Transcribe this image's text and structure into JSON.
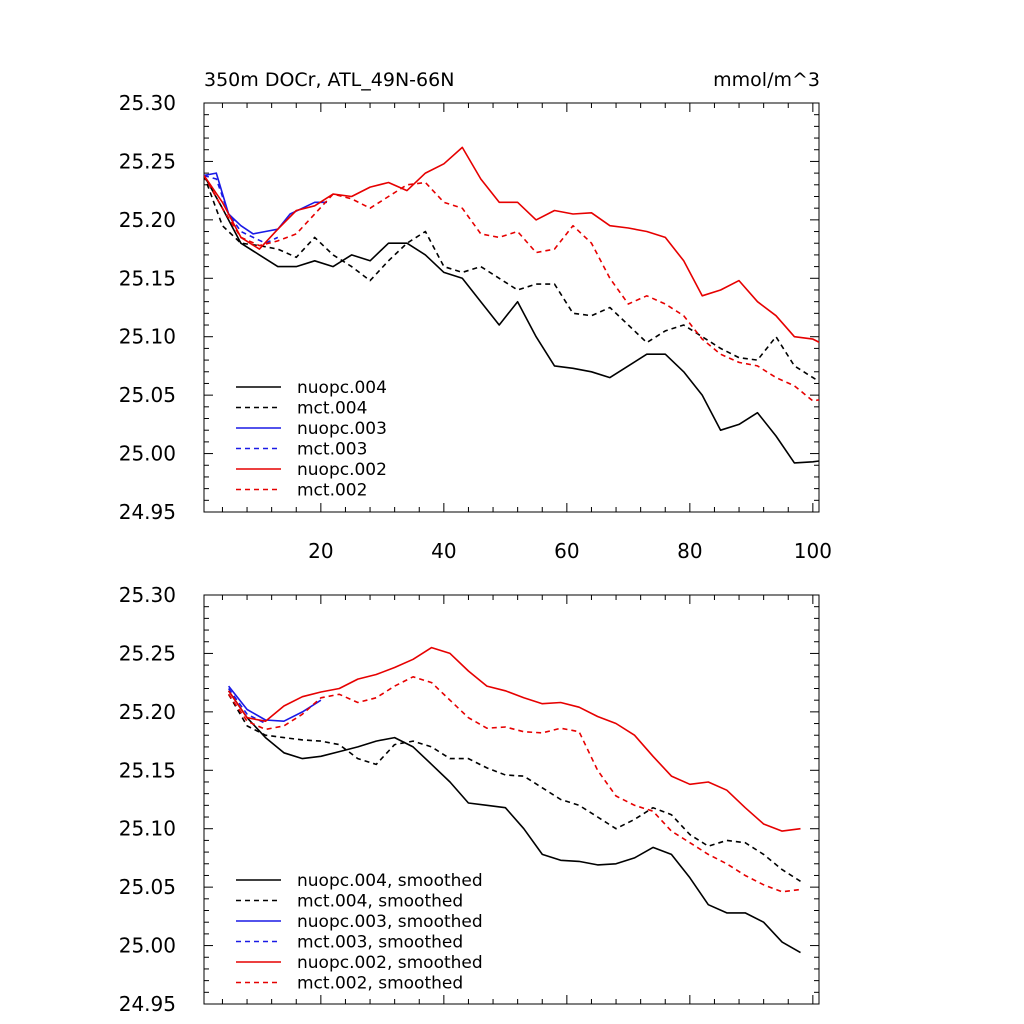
{
  "title_left": "350m DOCr, ATL_49N-66N",
  "title_right": "mmol/m^3",
  "chart_data": [
    {
      "type": "line",
      "title": "350m DOCr, ATL_49N-66N",
      "units": "mmol/m^3",
      "xlim": [
        1,
        101
      ],
      "ylim": [
        24.95,
        25.3
      ],
      "x_ticks": [
        20,
        40,
        60,
        80,
        100
      ],
      "x_tick_labels": [
        "20",
        "40",
        "60",
        "80",
        "100"
      ],
      "y_ticks": [
        24.95,
        25.0,
        25.05,
        25.1,
        25.15,
        25.2,
        25.25,
        25.3
      ],
      "y_tick_labels": [
        "24.95",
        "25.00",
        "25.05",
        "25.10",
        "25.15",
        "25.20",
        "25.25",
        "25.30"
      ],
      "legend_placement": "bottom-left",
      "series": [
        {
          "name": "nuopc.004",
          "color": "#000000",
          "dash": false,
          "x_start": 1,
          "x_step": 3,
          "values": [
            25.238,
            25.21,
            25.18,
            25.17,
            25.16,
            25.16,
            25.165,
            25.16,
            25.17,
            25.165,
            25.18,
            25.18,
            25.17,
            25.155,
            25.15,
            25.13,
            25.11,
            25.13,
            25.1,
            25.075,
            25.073,
            25.07,
            25.065,
            25.075,
            25.085,
            25.085,
            25.07,
            25.05,
            25.02,
            25.025,
            25.035,
            25.015,
            24.992,
            24.993,
            24.995
          ]
        },
        {
          "name": "mct.004",
          "color": "#000000",
          "dash": true,
          "x_start": 1,
          "x_step": 3,
          "values": [
            25.238,
            25.195,
            25.18,
            25.178,
            25.175,
            25.168,
            25.185,
            25.17,
            25.16,
            25.148,
            25.165,
            25.18,
            25.19,
            25.16,
            25.155,
            25.16,
            25.15,
            25.14,
            25.145,
            25.145,
            25.12,
            25.118,
            25.125,
            25.11,
            25.095,
            25.105,
            25.11,
            25.1,
            25.09,
            25.082,
            25.08,
            25.1,
            25.075,
            25.065,
            25.055,
            25.04
          ]
        },
        {
          "name": "nuopc.003",
          "color": "#1a1ae6",
          "dash": false,
          "x_start": 1,
          "x_step": 2,
          "values": [
            25.238,
            25.24,
            25.205,
            25.195,
            25.188,
            25.19,
            25.192,
            25.205,
            25.21,
            25.215,
            25.215
          ]
        },
        {
          "name": "mct.003",
          "color": "#1a1ae6",
          "dash": true,
          "x_start": 1,
          "x_step": 2,
          "values": [
            25.238,
            25.235,
            25.205,
            25.19,
            25.185,
            25.18,
            25.185
          ]
        },
        {
          "name": "nuopc.002",
          "color": "#e60000",
          "dash": false,
          "x_start": 1,
          "x_step": 3,
          "values": [
            25.238,
            25.215,
            25.185,
            25.175,
            25.192,
            25.208,
            25.212,
            25.222,
            25.22,
            25.228,
            25.232,
            25.225,
            25.24,
            25.248,
            25.262,
            25.235,
            25.215,
            25.215,
            25.2,
            25.208,
            25.205,
            25.206,
            25.195,
            25.193,
            25.19,
            25.185,
            25.165,
            25.135,
            25.14,
            25.148,
            25.13,
            25.118,
            25.1,
            25.098,
            25.09,
            25.108
          ]
        },
        {
          "name": "mct.002",
          "color": "#e60000",
          "dash": true,
          "x_start": 1,
          "x_step": 3,
          "values": [
            25.238,
            25.21,
            25.185,
            25.178,
            25.182,
            25.188,
            25.205,
            25.222,
            25.218,
            25.21,
            25.22,
            25.23,
            25.232,
            25.215,
            25.21,
            25.188,
            25.185,
            25.19,
            25.172,
            25.175,
            25.195,
            25.18,
            25.15,
            25.128,
            25.135,
            25.128,
            25.118,
            25.098,
            25.085,
            25.078,
            25.075,
            25.065,
            25.058,
            25.045,
            25.048,
            25.058
          ]
        }
      ]
    },
    {
      "type": "line",
      "xlim": [
        1,
        101
      ],
      "ylim": [
        24.95,
        25.3
      ],
      "x_ticks": [
        20,
        40,
        60,
        80,
        100
      ],
      "y_ticks": [
        24.95,
        25.0,
        25.05,
        25.1,
        25.15,
        25.2,
        25.25,
        25.3
      ],
      "y_tick_labels": [
        "24.95",
        "25.00",
        "25.05",
        "25.10",
        "25.15",
        "25.20",
        "25.25",
        "25.30"
      ],
      "legend_placement": "bottom-left",
      "series": [
        {
          "name": "nuopc.004, smoothed",
          "color": "#000000",
          "dash": false,
          "x_start": 5,
          "x_step": 3,
          "values": [
            25.218,
            25.195,
            25.178,
            25.165,
            25.16,
            25.162,
            25.166,
            25.17,
            25.175,
            25.178,
            25.17,
            25.155,
            25.14,
            25.122,
            25.12,
            25.118,
            25.1,
            25.078,
            25.073,
            25.072,
            25.069,
            25.07,
            25.075,
            25.084,
            25.078,
            25.058,
            25.035,
            25.028,
            25.028,
            25.02,
            25.003,
            24.994
          ]
        },
        {
          "name": "mct.004, smoothed",
          "color": "#000000",
          "dash": true,
          "x_start": 5,
          "x_step": 3,
          "values": [
            25.215,
            25.188,
            25.18,
            25.178,
            25.176,
            25.175,
            25.172,
            25.16,
            25.155,
            25.172,
            25.175,
            25.17,
            25.16,
            25.16,
            25.152,
            25.146,
            25.145,
            25.135,
            25.125,
            25.12,
            25.11,
            25.1,
            25.108,
            25.118,
            25.112,
            25.095,
            25.085,
            25.09,
            25.088,
            25.078,
            25.065,
            25.055
          ]
        },
        {
          "name": "nuopc.003, smoothed",
          "color": "#1a1ae6",
          "dash": false,
          "x_start": 5,
          "x_step": 3,
          "values": [
            25.222,
            25.202,
            25.193,
            25.192,
            25.2,
            25.21
          ]
        },
        {
          "name": "mct.003, smoothed",
          "color": "#1a1ae6",
          "dash": true,
          "x_start": 5,
          "x_step": 3,
          "values": [
            25.22,
            25.198,
            25.19
          ]
        },
        {
          "name": "nuopc.002, smoothed",
          "color": "#e60000",
          "dash": false,
          "x_start": 5,
          "x_step": 3,
          "values": [
            25.218,
            25.195,
            25.192,
            25.205,
            25.213,
            25.217,
            25.22,
            25.228,
            25.232,
            25.238,
            25.245,
            25.255,
            25.25,
            25.235,
            25.222,
            25.218,
            25.212,
            25.207,
            25.208,
            25.204,
            25.196,
            25.19,
            25.18,
            25.162,
            25.145,
            25.138,
            25.14,
            25.133,
            25.118,
            25.104,
            25.098,
            25.1
          ]
        },
        {
          "name": "mct.002, smoothed",
          "color": "#e60000",
          "dash": true,
          "x_start": 5,
          "x_step": 3,
          "values": [
            25.215,
            25.192,
            25.185,
            25.188,
            25.198,
            25.212,
            25.215,
            25.208,
            25.212,
            25.222,
            25.23,
            25.225,
            25.21,
            25.195,
            25.186,
            25.187,
            25.183,
            25.182,
            25.186,
            25.183,
            25.15,
            25.128,
            25.12,
            25.115,
            25.098,
            25.088,
            25.078,
            25.07,
            25.06,
            25.052,
            25.046,
            25.048
          ]
        }
      ]
    }
  ]
}
